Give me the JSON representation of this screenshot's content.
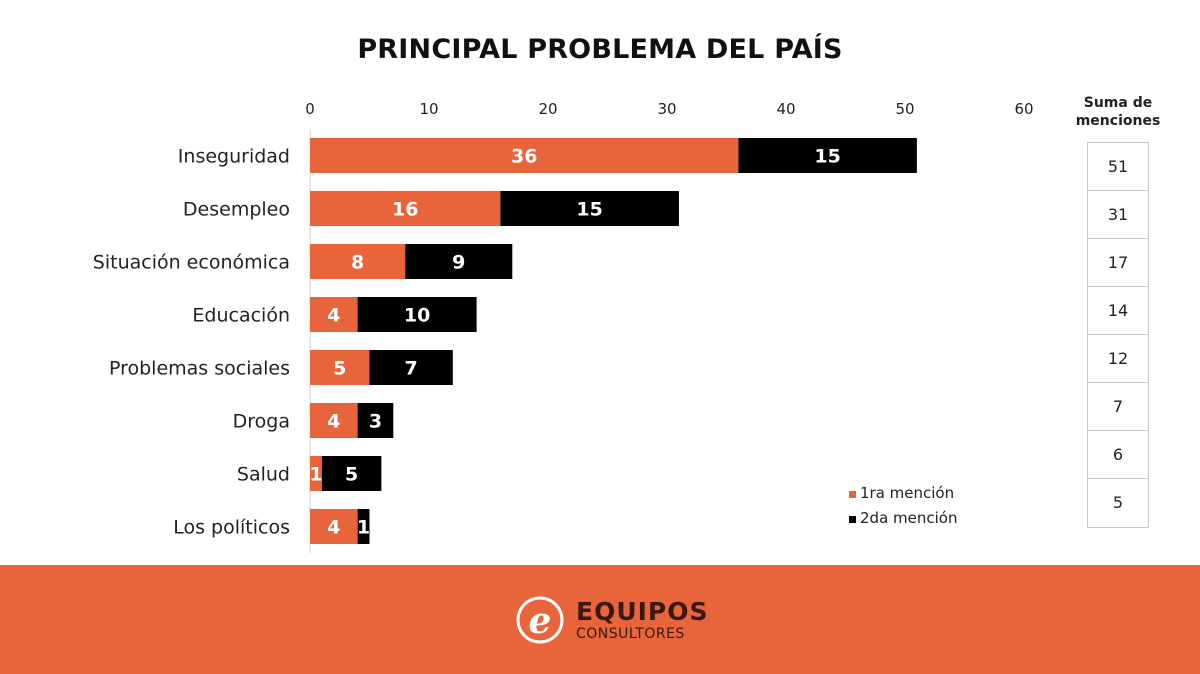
{
  "chart_data": {
    "type": "bar",
    "orientation": "horizontal",
    "stacked": true,
    "title": "PRINCIPAL PROBLEMA DEL PAÍS",
    "categories": [
      "Inseguridad",
      "Desempleo",
      "Situación económica",
      "Educación",
      "Problemas sociales",
      "Droga",
      "Salud",
      "Los políticos"
    ],
    "series": [
      {
        "name": "1ra mención",
        "color": "#e8643a",
        "values": [
          36,
          16,
          8,
          4,
          5,
          4,
          1,
          4
        ]
      },
      {
        "name": "2da mención",
        "color": "#000000",
        "values": [
          15,
          15,
          9,
          10,
          7,
          3,
          5,
          1
        ]
      }
    ],
    "xlim": [
      0,
      60
    ],
    "xticks": [
      "0",
      "10",
      "20",
      "30",
      "40",
      "50",
      "60"
    ],
    "axis_position": "top",
    "grid": false,
    "legend_position": "bottom-right",
    "sum_table": {
      "header": "Suma de menciones",
      "values": [
        "51",
        "31",
        "17",
        "14",
        "12",
        "7",
        "6",
        "5"
      ]
    }
  },
  "brand": {
    "name": "EQUIPOS",
    "subtitle": "CONSULTORES",
    "color": "#e8643a"
  }
}
